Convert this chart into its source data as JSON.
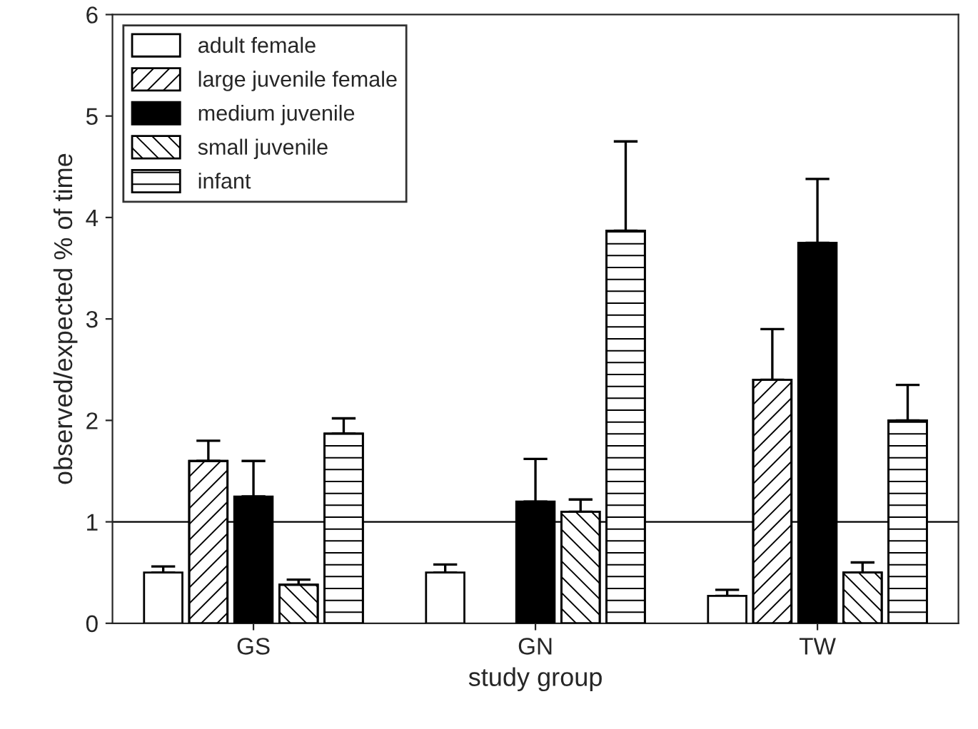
{
  "chart_data": {
    "type": "bar",
    "xlabel": "study group",
    "ylabel": "observed/expected % of time",
    "categories": [
      "GS",
      "GN",
      "TW"
    ],
    "series": [
      {
        "name": "adult female",
        "color": "#ffffff",
        "values": [
          0.5,
          0.5,
          0.27
        ],
        "errors": [
          [
            0.5,
            0.56
          ],
          [
            0.5,
            0.58
          ],
          [
            0.27,
            0.33
          ]
        ]
      },
      {
        "name": "large juvenile female",
        "color": "#000000",
        "values": [
          1.6,
          null,
          2.4
        ],
        "errors": [
          [
            1.6,
            1.8
          ],
          null,
          [
            2.4,
            2.9
          ]
        ]
      },
      {
        "name": "medium juvenile",
        "color": "#000000",
        "values": [
          1.25,
          1.2,
          3.75
        ],
        "errors": [
          [
            1.25,
            1.6
          ],
          [
            1.2,
            1.62
          ],
          [
            3.75,
            4.38
          ]
        ]
      },
      {
        "name": "small juvenile",
        "color": "#000000",
        "values": [
          0.38,
          1.1,
          0.5
        ],
        "errors": [
          [
            0.38,
            0.43
          ],
          [
            1.1,
            1.22
          ],
          [
            0.5,
            0.6
          ]
        ]
      },
      {
        "name": "infant",
        "color": "#000000",
        "values": [
          1.87,
          3.87,
          2.0
        ],
        "errors": [
          [
            1.87,
            2.02
          ],
          [
            3.87,
            4.75
          ],
          [
            2.0,
            2.35
          ]
        ]
      }
    ],
    "ylim": [
      0,
      6
    ],
    "yticks": [
      0,
      1,
      2,
      3,
      4,
      5,
      6
    ],
    "ref_lines": [
      {
        "axis": "y",
        "value": 1,
        "color": "#000000"
      }
    ],
    "legend": "top left",
    "grid": false
  }
}
